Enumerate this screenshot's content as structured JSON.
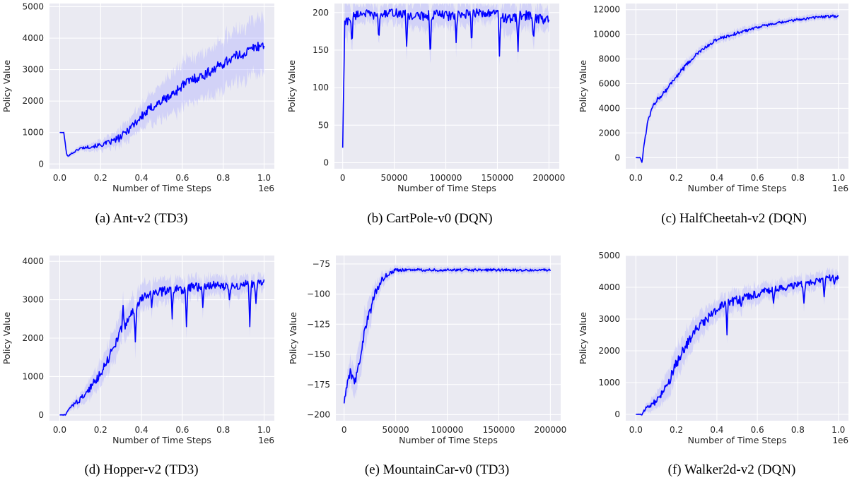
{
  "chart_data": [
    {
      "type": "line",
      "caption": "(a) Ant-v2 (TD3)",
      "xlabel": "Number of Time Steps",
      "ylabel": "Policy Value",
      "x_offset_label": "1e6",
      "xlim": [
        -0.05,
        1.05
      ],
      "ylim": [
        -150,
        5100
      ],
      "xticks": [
        0.0,
        0.2,
        0.4,
        0.6,
        0.8,
        1.0
      ],
      "xtick_labels": [
        "0.0",
        "0.2",
        "0.4",
        "0.6",
        "0.8",
        "1.0"
      ],
      "yticks": [
        0,
        1000,
        2000,
        3000,
        4000,
        5000
      ],
      "ytick_labels": [
        "0",
        "1000",
        "2000",
        "3000",
        "4000",
        "5000"
      ],
      "grid": true,
      "series": [
        {
          "x": [
            0.0,
            0.02,
            0.035,
            0.05,
            0.1,
            0.15,
            0.2,
            0.25,
            0.3,
            0.35,
            0.4,
            0.45,
            0.5,
            0.55,
            0.6,
            0.65,
            0.7,
            0.75,
            0.8,
            0.85,
            0.9,
            0.95,
            1.0
          ],
          "y": [
            1000,
            1000,
            250,
            300,
            500,
            550,
            600,
            700,
            850,
            1200,
            1500,
            1800,
            2000,
            2200,
            2500,
            2700,
            2800,
            3000,
            3200,
            3400,
            3500,
            3700,
            3800
          ],
          "std": [
            0,
            20,
            60,
            80,
            100,
            150,
            200,
            250,
            350,
            400,
            500,
            600,
            700,
            800,
            900,
            900,
            950,
            950,
            1000,
            1000,
            1050,
            1100,
            1100
          ]
        }
      ]
    },
    {
      "type": "line",
      "caption": "(b) CartPole-v0 (DQN)",
      "xlabel": "Number of Time Steps",
      "ylabel": "Policy Value",
      "xlim": [
        -8000,
        210000
      ],
      "ylim": [
        -8,
        212
      ],
      "xticks": [
        0,
        50000,
        100000,
        150000,
        200000
      ],
      "xtick_labels": [
        "0",
        "50000",
        "100000",
        "150000",
        "200000"
      ],
      "yticks": [
        0,
        50,
        100,
        150,
        200
      ],
      "ytick_labels": [
        "0",
        "50",
        "100",
        "150",
        "200"
      ],
      "grid": true,
      "series": [
        {
          "x": [
            0,
            2000,
            5000,
            10000,
            15000,
            20000,
            30000,
            40000,
            50000,
            60000,
            70000,
            80000,
            90000,
            100000,
            110000,
            120000,
            130000,
            140000,
            150000,
            160000,
            170000,
            180000,
            190000,
            200000
          ],
          "y": [
            20,
            185,
            190,
            195,
            198,
            200,
            196,
            198,
            200,
            197,
            195,
            196,
            198,
            196,
            195,
            197,
            200,
            199,
            200,
            190,
            195,
            196,
            192,
            190
          ],
          "std": [
            0,
            30,
            25,
            20,
            15,
            15,
            15,
            15,
            15,
            20,
            20,
            25,
            20,
            20,
            20,
            20,
            15,
            15,
            10,
            30,
            20,
            20,
            20,
            15
          ],
          "dips": [
            [
              9000,
              155
            ],
            [
              35000,
              160
            ],
            [
              62000,
              155
            ],
            [
              85000,
              133
            ],
            [
              110000,
              160
            ],
            [
              125000,
              155
            ],
            [
              152000,
              142
            ],
            [
              170000,
              148
            ],
            [
              185000,
              160
            ]
          ]
        }
      ]
    },
    {
      "type": "line",
      "caption": "(c) HalfCheetah-v2 (DQN)",
      "xlabel": "Number of Time Steps",
      "ylabel": "Policy Value",
      "x_offset_label": "1e6",
      "xlim": [
        -0.05,
        1.05
      ],
      "ylim": [
        -900,
        12500
      ],
      "xticks": [
        0.0,
        0.2,
        0.4,
        0.6,
        0.8,
        1.0
      ],
      "xtick_labels": [
        "0.0",
        "0.2",
        "0.4",
        "0.6",
        "0.8",
        "1.0"
      ],
      "yticks": [
        0,
        2000,
        4000,
        6000,
        8000,
        10000,
        12000
      ],
      "ytick_labels": [
        "0",
        "2000",
        "4000",
        "6000",
        "8000",
        "10000",
        "12000"
      ],
      "grid": true,
      "series": [
        {
          "x": [
            0.0,
            0.02,
            0.03,
            0.04,
            0.06,
            0.08,
            0.1,
            0.15,
            0.2,
            0.25,
            0.3,
            0.35,
            0.4,
            0.5,
            0.6,
            0.7,
            0.8,
            0.9,
            1.0
          ],
          "y": [
            0,
            0,
            -400,
            1000,
            3000,
            4000,
            4600,
            5500,
            6600,
            7500,
            8400,
            9000,
            9600,
            10100,
            10600,
            10900,
            11200,
            11400,
            11500
          ],
          "std": [
            0,
            50,
            200,
            300,
            400,
            400,
            500,
            500,
            600,
            500,
            400,
            400,
            400,
            400,
            350,
            300,
            300,
            300,
            300
          ]
        }
      ]
    },
    {
      "type": "line",
      "caption": "(d) Hopper-v2 (TD3)",
      "xlabel": "Number of Time Steps",
      "ylabel": "Policy Value",
      "x_offset_label": "1e6",
      "xlim": [
        -0.05,
        1.05
      ],
      "ylim": [
        -150,
        4150
      ],
      "xticks": [
        0.0,
        0.2,
        0.4,
        0.6,
        0.8,
        1.0
      ],
      "xtick_labels": [
        "0.0",
        "0.2",
        "0.4",
        "0.6",
        "0.8",
        "1.0"
      ],
      "yticks": [
        0,
        1000,
        2000,
        3000,
        4000
      ],
      "ytick_labels": [
        "0",
        "1000",
        "2000",
        "3000",
        "4000"
      ],
      "grid": true,
      "series": [
        {
          "x": [
            0.0,
            0.03,
            0.05,
            0.1,
            0.15,
            0.2,
            0.25,
            0.3,
            0.35,
            0.4,
            0.45,
            0.5,
            0.55,
            0.6,
            0.65,
            0.7,
            0.75,
            0.8,
            0.85,
            0.9,
            0.95,
            1.0
          ],
          "y": [
            0,
            0,
            200,
            400,
            700,
            1100,
            1600,
            2200,
            2600,
            3000,
            3200,
            3200,
            3300,
            3250,
            3350,
            3300,
            3400,
            3350,
            3350,
            3400,
            3400,
            3450
          ],
          "std": [
            0,
            50,
            100,
            200,
            300,
            400,
            500,
            500,
            500,
            450,
            400,
            400,
            350,
            350,
            300,
            300,
            300,
            300,
            300,
            300,
            300,
            250
          ],
          "dips": [
            [
              0.31,
              2850
            ],
            [
              0.37,
              1900
            ],
            [
              0.45,
              2800
            ],
            [
              0.55,
              2500
            ],
            [
              0.62,
              2300
            ],
            [
              0.7,
              2800
            ],
            [
              0.83,
              3000
            ],
            [
              0.93,
              2300
            ],
            [
              0.96,
              2900
            ]
          ]
        }
      ]
    },
    {
      "type": "line",
      "caption": "(e) MountainCar-v0 (TD3)",
      "xlabel": "Number of Time Steps",
      "ylabel": "Policy Value",
      "xlim": [
        -8000,
        210000
      ],
      "ylim": [
        -205,
        -68
      ],
      "xticks": [
        0,
        50000,
        100000,
        150000,
        200000
      ],
      "xtick_labels": [
        "0",
        "50000",
        "100000",
        "150000",
        "200000"
      ],
      "yticks": [
        -200,
        -175,
        -150,
        -125,
        -100,
        -75
      ],
      "ytick_labels": [
        "−200",
        "−175",
        "−150",
        "−125",
        "−100",
        "−75"
      ],
      "grid": true,
      "series": [
        {
          "x": [
            0,
            3000,
            6000,
            10000,
            15000,
            20000,
            25000,
            30000,
            35000,
            40000,
            50000,
            60000,
            80000,
            100000,
            120000,
            140000,
            160000,
            180000,
            200000
          ],
          "y": [
            -190,
            -175,
            -165,
            -175,
            -155,
            -130,
            -115,
            -100,
            -90,
            -85,
            -80,
            -80,
            -80,
            -80,
            -80,
            -80,
            -80,
            -80,
            -80
          ],
          "std": [
            5,
            10,
            15,
            15,
            20,
            20,
            15,
            10,
            8,
            5,
            4,
            3,
            3,
            3,
            3,
            3,
            3,
            3,
            3
          ]
        }
      ]
    },
    {
      "type": "line",
      "caption": "(f) Walker2d-v2 (DQN)",
      "xlabel": "Number of Time Steps",
      "ylabel": "Policy Value",
      "x_offset_label": "1e6",
      "xlim": [
        -0.05,
        1.05
      ],
      "ylim": [
        -200,
        5000
      ],
      "xticks": [
        0.0,
        0.2,
        0.4,
        0.6,
        0.8,
        1.0
      ],
      "xtick_labels": [
        "0.0",
        "0.2",
        "0.4",
        "0.6",
        "0.8",
        "1.0"
      ],
      "yticks": [
        0,
        1000,
        2000,
        3000,
        4000,
        5000
      ],
      "ytick_labels": [
        "0",
        "1000",
        "2000",
        "3000",
        "4000",
        "5000"
      ],
      "grid": true,
      "series": [
        {
          "x": [
            0.0,
            0.03,
            0.05,
            0.1,
            0.15,
            0.2,
            0.25,
            0.3,
            0.35,
            0.4,
            0.45,
            0.5,
            0.55,
            0.6,
            0.65,
            0.7,
            0.75,
            0.8,
            0.85,
            0.9,
            0.95,
            1.0
          ],
          "y": [
            0,
            0,
            200,
            400,
            800,
            1600,
            2200,
            2700,
            3000,
            3300,
            3500,
            3600,
            3700,
            3800,
            3900,
            3950,
            4000,
            4100,
            4100,
            4200,
            4300,
            4300
          ],
          "std": [
            0,
            50,
            150,
            300,
            500,
            600,
            600,
            500,
            450,
            400,
            400,
            400,
            350,
            350,
            300,
            300,
            300,
            300,
            300,
            300,
            300,
            250
          ],
          "dips": [
            [
              0.45,
              2500
            ],
            [
              0.52,
              3400
            ],
            [
              0.68,
              3500
            ],
            [
              0.83,
              3500
            ],
            [
              0.93,
              3700
            ],
            [
              0.98,
              4100
            ]
          ]
        }
      ]
    }
  ]
}
